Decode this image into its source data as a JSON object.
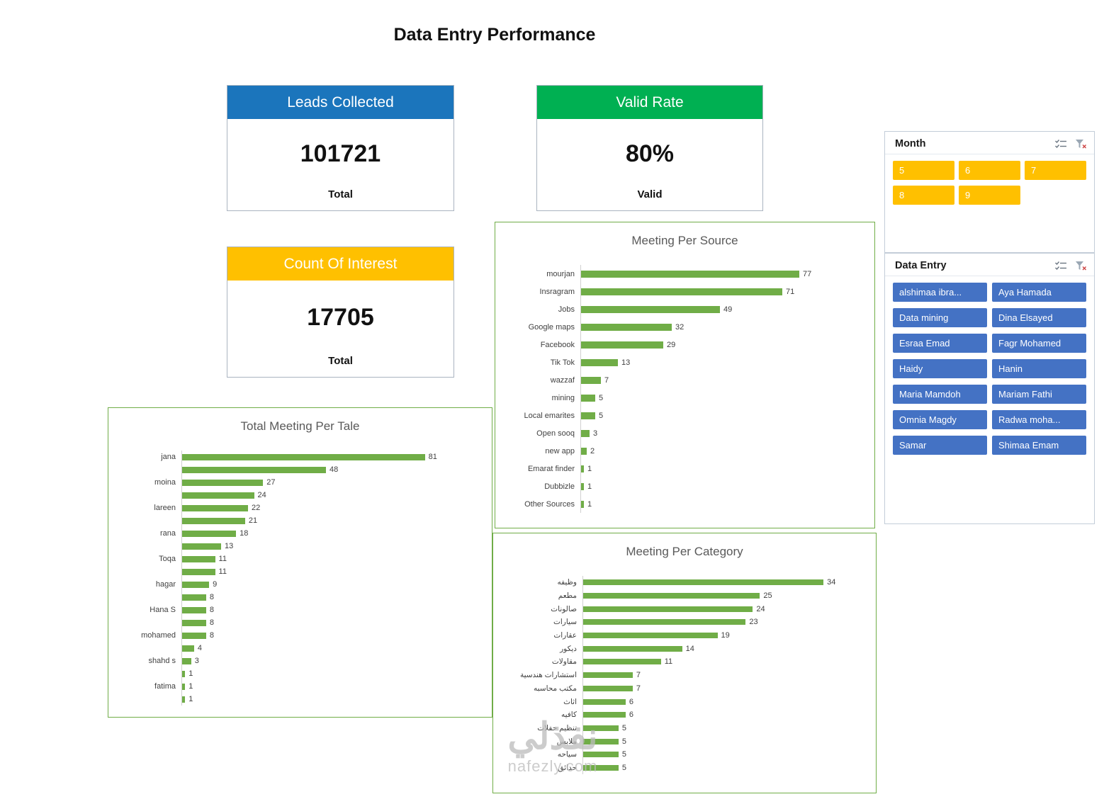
{
  "page_title": "Data Entry Performance",
  "cards": {
    "leads": {
      "header": "Leads Collected",
      "value": "101721",
      "footer": "Total",
      "color": "#1B75BC"
    },
    "valid": {
      "header": "Valid Rate",
      "value": "80%",
      "footer": "Valid",
      "color": "#00B052"
    },
    "interest": {
      "header": "Count Of Interest",
      "value": "17705",
      "footer": "Total",
      "color": "#FFC000"
    }
  },
  "chart_data": [
    {
      "id": "meeting_per_source",
      "type": "bar",
      "orientation": "horizontal",
      "title": "Meeting Per Source",
      "categories": [
        "mourjan",
        "Insragram",
        "Jobs",
        "Google maps",
        "Facebook",
        "Tik Tok",
        "wazzaf",
        "mining",
        "Local emarites",
        "Open sooq",
        "new app",
        "Emarat finder",
        "Dubbizle",
        "Other Sources"
      ],
      "values": [
        77,
        71,
        49,
        32,
        29,
        13,
        7,
        5,
        5,
        3,
        2,
        1,
        1,
        1
      ],
      "bar_color": "#70AD47",
      "xlim": [
        0,
        100
      ],
      "grid": false,
      "legend": false
    },
    {
      "id": "total_meeting_per_tale",
      "type": "bar",
      "orientation": "horizontal",
      "title": "Total Meeting Per Tale",
      "categories": [
        "jana",
        "",
        "moina",
        "",
        "lareen",
        "",
        "rana",
        "",
        "Toqa",
        "",
        "hagar",
        "",
        "Hana S",
        "",
        "mohamed",
        "",
        "shahd s",
        "",
        "fatima",
        ""
      ],
      "values": [
        81,
        48,
        27,
        24,
        22,
        21,
        18,
        13,
        11,
        11,
        9,
        8,
        8,
        8,
        8,
        4,
        3,
        1,
        1,
        1
      ],
      "bar_color": "#70AD47",
      "xlim": [
        0,
        100
      ],
      "grid": false,
      "legend": false
    },
    {
      "id": "meeting_per_category",
      "type": "bar",
      "orientation": "horizontal",
      "title": "Meeting Per Category",
      "categories": [
        "وظيفه",
        "مطعم",
        "صالونات",
        "سيارات",
        "عقارات",
        "ديكور",
        "مقاولات",
        "استشارات هندسية",
        "مكتب محاسبه",
        "اثاث",
        "كافيه",
        "تنظيم حفلات",
        "ملابس",
        "سياحه",
        "حدائق"
      ],
      "values": [
        34,
        25,
        24,
        23,
        19,
        14,
        11,
        7,
        7,
        6,
        6,
        5,
        5,
        5,
        5
      ],
      "bar_color": "#70AD47",
      "xlim": [
        0,
        40
      ],
      "grid": false,
      "legend": false
    }
  ],
  "slicers": {
    "month": {
      "title": "Month",
      "items": [
        "5",
        "6",
        "7",
        "8",
        "9"
      ],
      "button_color": "#FFC000",
      "icons": [
        "multi-select-icon",
        "clear-filter-icon"
      ]
    },
    "data_entry": {
      "title": "Data Entry",
      "items": [
        "alshimaa ibra...",
        "Aya Hamada",
        "Data mining",
        "Dina Elsayed",
        "Esraa Emad",
        "Fagr Mohamed",
        "Haidy",
        "Hanin",
        "Maria Mamdoh",
        "Mariam Fathi",
        "Omnia Magdy",
        "Radwa moha...",
        "Samar",
        "Shimaa Emam"
      ],
      "button_color": "#4472C4",
      "icons": [
        "multi-select-icon",
        "clear-filter-icon"
      ]
    }
  },
  "watermark": {
    "logo": "نفذلي",
    "site": "nafezly.com"
  }
}
